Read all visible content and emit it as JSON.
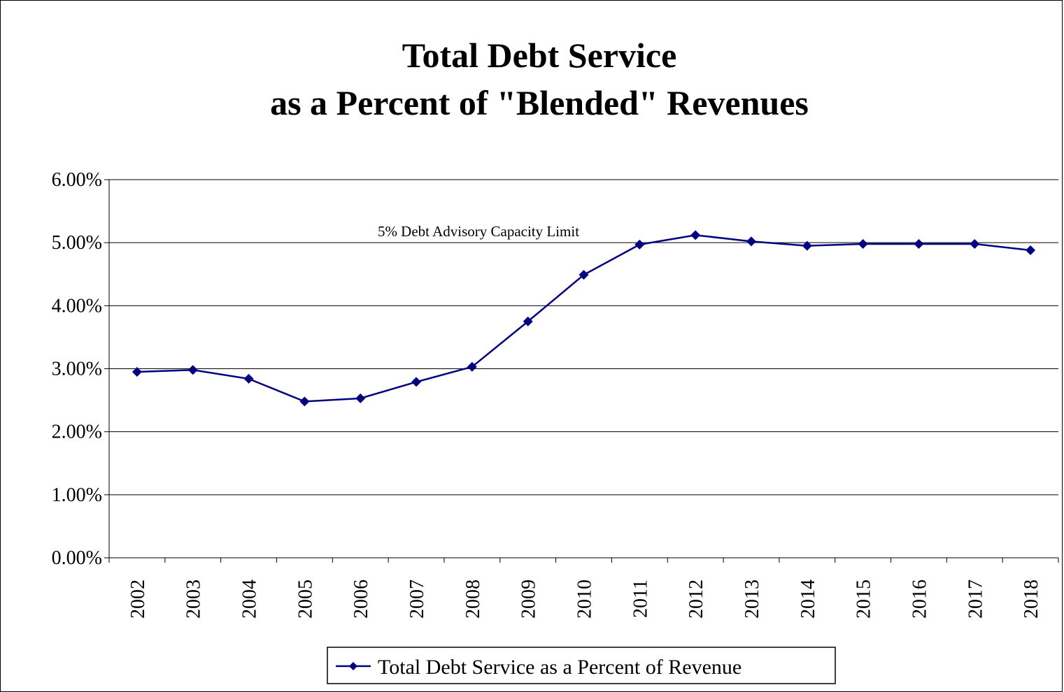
{
  "chart_data": {
    "type": "line",
    "title": [
      "Total Debt Service",
      "as a Percent of \"Blended\" Revenues"
    ],
    "xlabel": "",
    "ylabel": "",
    "ylim": [
      0,
      6
    ],
    "y_tick_values": [
      0,
      1,
      2,
      3,
      4,
      5,
      6
    ],
    "y_tick_labels": [
      "0.00%",
      "1.00%",
      "2.00%",
      "3.00%",
      "4.00%",
      "5.00%",
      "6.00%"
    ],
    "categories": [
      "2002",
      "2003",
      "2004",
      "2005",
      "2006",
      "2007",
      "2008",
      "2009",
      "2010",
      "2011",
      "2012",
      "2013",
      "2014",
      "2015",
      "2016",
      "2017",
      "2018"
    ],
    "series": [
      {
        "name": "Total Debt Service as a Percent of Revenue",
        "marker": "diamond",
        "color": "#000080",
        "values": [
          2.95,
          2.98,
          2.84,
          2.48,
          2.53,
          2.79,
          3.03,
          3.75,
          4.49,
          4.97,
          5.12,
          5.02,
          4.95,
          4.98,
          4.98,
          4.98,
          4.88
        ]
      }
    ],
    "annotations": [
      {
        "text": "5% Debt Advisory Capacity Limit",
        "y": 5.0
      }
    ],
    "grid": true,
    "legend_position": "bottom"
  }
}
